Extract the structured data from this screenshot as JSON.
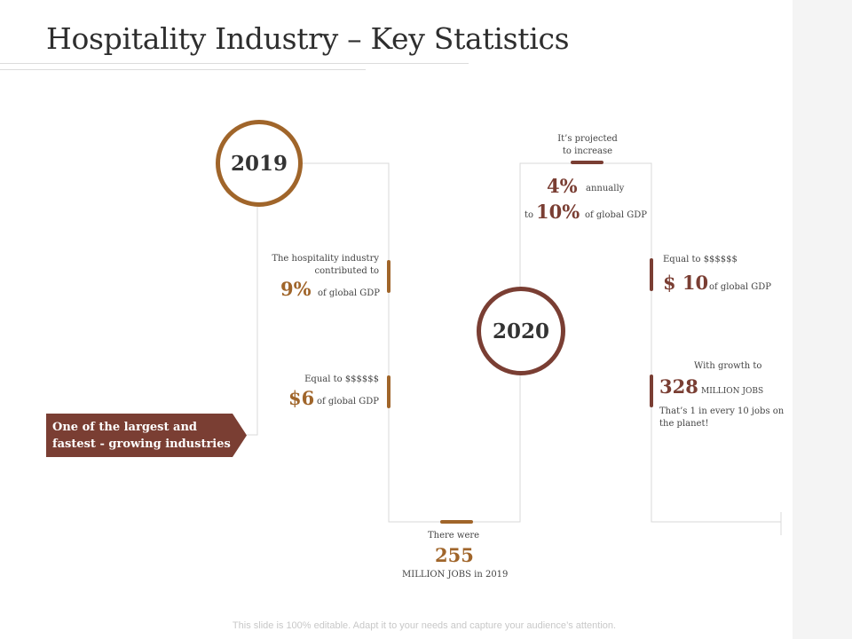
{
  "title": "Hospitality Industry – Key Statistics",
  "colors": {
    "brown": "#a0652a",
    "maroon": "#7a3e33",
    "line": "#d9d9d9"
  },
  "banner": {
    "line1": "One of the largest and",
    "line2": "fastest - growing industries"
  },
  "year_2019": "2019",
  "year_2020": "2020",
  "stats_2019": {
    "contribution": {
      "line1": "The hospitality industry",
      "line2": "contributed to",
      "value": "9%",
      "suffix": "of global GDP"
    },
    "equal": {
      "label": "Equal to $$$$$$",
      "value": "$6",
      "suffix": "of global GDP"
    },
    "jobs": {
      "label": "There were",
      "value": "255",
      "suffix": "MILLION JOBS in 2019"
    }
  },
  "stats_2020": {
    "projection": {
      "line1": "It’s projected",
      "line2": "to increase",
      "value1": "4%",
      "suffix1": "annually",
      "prefix2": "to",
      "value2": "10%",
      "suffix2": "of global GDP"
    },
    "equal": {
      "label": "Equal to $$$$$$",
      "value": "$ 10",
      "suffix": "of global GDP"
    },
    "growth": {
      "label": "With growth to",
      "value": "328",
      "unit": "MILLION JOBS",
      "note1": "That’s 1 in every 10 jobs on",
      "note2": "the planet!"
    }
  },
  "footer": "This slide is 100% editable. Adapt it to your needs and capture your audience’s attention."
}
